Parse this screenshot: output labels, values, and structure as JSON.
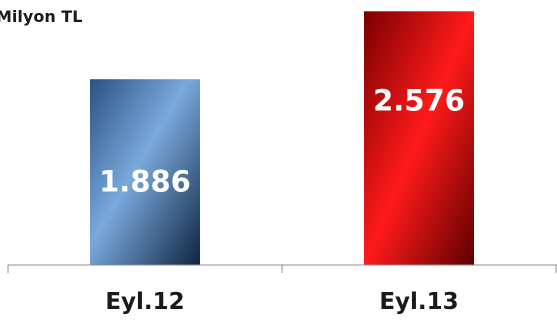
{
  "chart_data": {
    "type": "bar",
    "ylabel": "Milyon TL",
    "categories": [
      "Eyl.12",
      "Eyl.13"
    ],
    "values": [
      1886,
      2576
    ],
    "value_labels": [
      "1.886",
      "2.576"
    ],
    "ylim": [
      0,
      2650
    ],
    "grid": false,
    "legend": "none",
    "colors": [
      "#3f6fa6",
      "#c40000"
    ]
  }
}
